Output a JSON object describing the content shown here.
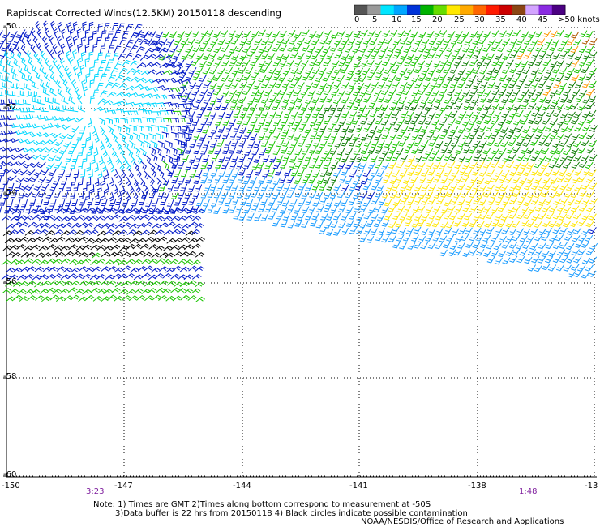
{
  "title": "Rapidscat Corrected Winds(12.5KM) 20150118 descending",
  "colorbar": {
    "labels": [
      "0",
      "5",
      "10",
      "15",
      "20",
      "25",
      "30",
      "35",
      "40",
      "45",
      ">50 knots"
    ],
    "colors": [
      "#555555",
      "#9a9a9a",
      "#00e5ff",
      "#00a6ff",
      "#0033d9",
      "#00b300",
      "#66dd00",
      "#ffe800",
      "#ffaa00",
      "#ff6600",
      "#ff1a00",
      "#cc0000",
      "#8b4513",
      "#d3a4ff",
      "#8a2be2",
      "#4b0082"
    ]
  },
  "lat_labels": [
    "-50",
    "-52",
    "-54",
    "-56",
    "-58",
    "-60"
  ],
  "lon_labels": [
    "-150",
    "-147",
    "-144",
    "-141",
    "-138",
    "-13"
  ],
  "times": {
    "left": "3:23",
    "right": "1:48"
  },
  "notes": {
    "line1": "Note: 1) Times are GMT 2)Times along bottom correspond to measurement at -50S",
    "line2": "3)Data buffer is 22 hrs from 20150118 4) Black circles indicate possible contamination"
  },
  "credit": "NOAA/NESDIS/Office of Research and Applications",
  "wind_colors": {
    "black": "#000000",
    "cyan": "#00d8ff",
    "light_blue": "#1a9cff",
    "blue": "#0018c8",
    "green": "#19c400",
    "dark_green": "#0b7a00",
    "yellow": "#ffe600",
    "orange": "#ff9900",
    "brown": "#b05a00"
  }
}
